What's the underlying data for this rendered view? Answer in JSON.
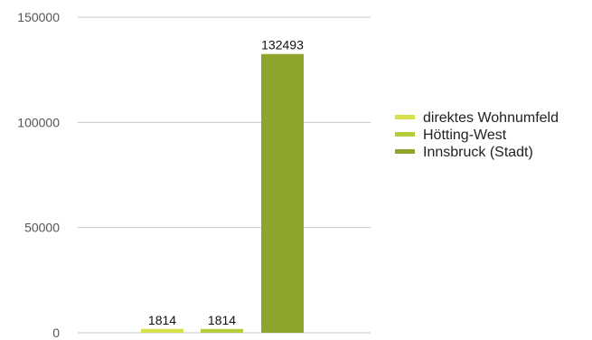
{
  "chart_data": {
    "type": "bar",
    "categories": [
      "direktes Wohnumfeld",
      "Hötting-West",
      "Innsbruck (Stadt)"
    ],
    "values": [
      1814,
      1814,
      132493
    ],
    "colors": [
      "#d6e04a",
      "#b3cc3c",
      "#8da52a"
    ],
    "ylim": [
      0,
      150000
    ],
    "yticks": [
      0,
      50000,
      100000,
      150000
    ],
    "grid": true,
    "legend_position": "right",
    "data_labels": [
      "1814",
      "1814",
      "132493"
    ]
  }
}
